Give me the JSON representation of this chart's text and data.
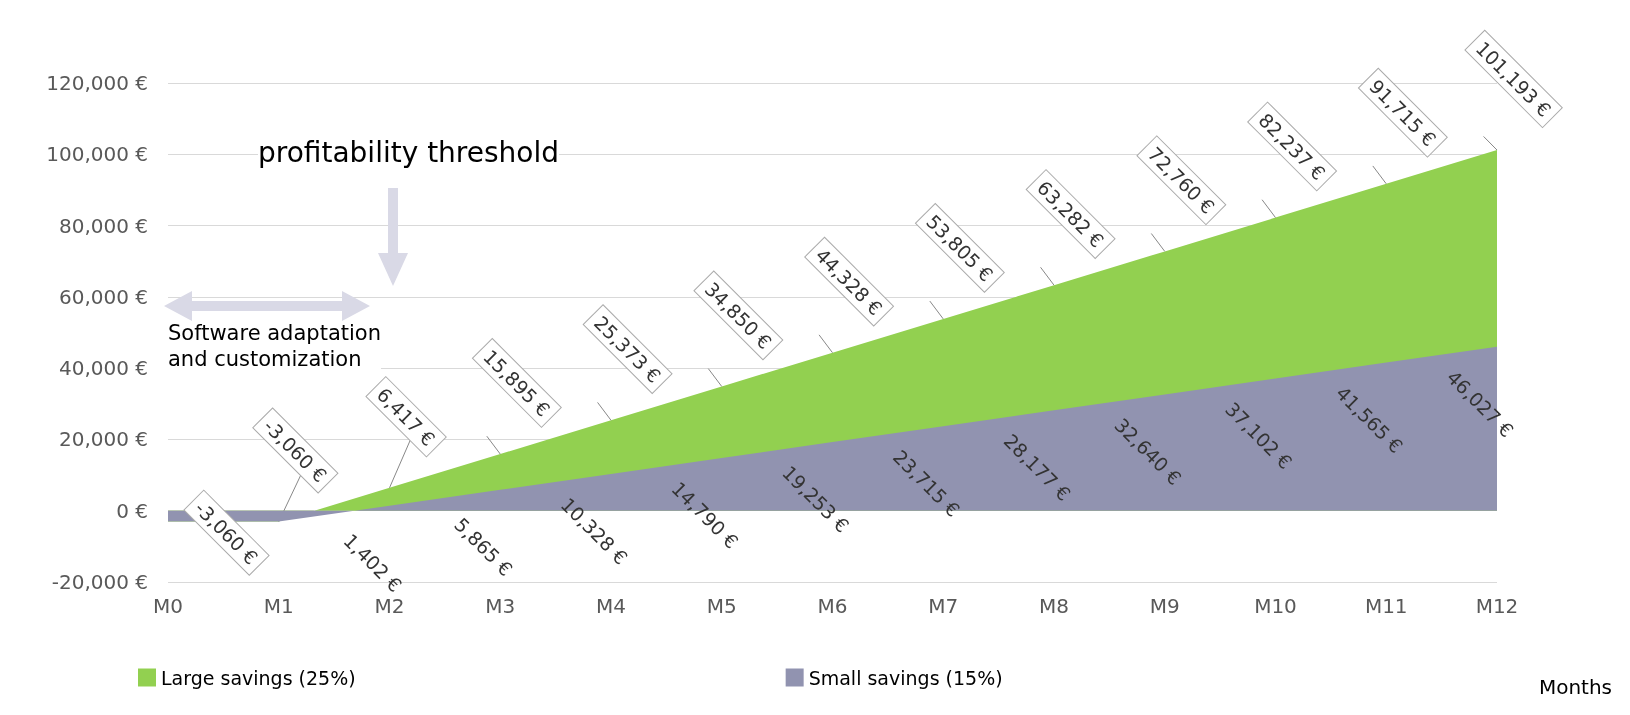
{
  "chart_data": {
    "type": "area",
    "xlabel": "Months",
    "categories": [
      "M0",
      "M1",
      "M2",
      "M3",
      "M4",
      "M5",
      "M6",
      "M7",
      "M8",
      "M9",
      "M10",
      "M11",
      "M12"
    ],
    "series": [
      {
        "name": "Large savings (25%)",
        "color": "#92d050",
        "values": [
          -3060,
          -3060,
          6417,
          15895,
          25373,
          34850,
          44328,
          53805,
          63282,
          72760,
          82237,
          91715,
          101193
        ],
        "value_labels": [
          null,
          "-3,060 €",
          "6,417 €",
          "15,895 €",
          "25,373 €",
          "34,850 €",
          "44,328 €",
          "53,805 €",
          "63,282 €",
          "72,760 €",
          "82,237 €",
          "91,715 €",
          "101,193 €"
        ]
      },
      {
        "name": "Small savings (15%)",
        "color": "#9193b0",
        "values": [
          -3060,
          -3060,
          1402,
          5865,
          10328,
          14790,
          19253,
          23715,
          28177,
          32640,
          37102,
          41565,
          46027
        ],
        "value_labels": [
          "-3,060 €",
          null,
          "1,402 €",
          "5,865 €",
          "10,328 €",
          "14,790 €",
          "19,253 €",
          "23,715 €",
          "28,177 €",
          "32,640 €",
          "37,102 €",
          "41,565 €",
          "46,027 €"
        ]
      }
    ],
    "ylim": [
      -20000,
      120000
    ],
    "yticks": [
      {
        "value": -20000,
        "label": "-20,000 €"
      },
      {
        "value": 0,
        "label": "0 €"
      },
      {
        "value": 20000,
        "label": "20,000 €"
      },
      {
        "value": 40000,
        "label": "40,000 €"
      },
      {
        "value": 60000,
        "label": "60,000 €"
      },
      {
        "value": 80000,
        "label": "80,000 €"
      },
      {
        "value": 100000,
        "label": "100,000 €"
      },
      {
        "value": 120000,
        "label": "120,000 €"
      }
    ],
    "grid": "y",
    "legend": "bottom left",
    "annotations": [
      "profitability threshold",
      "Software adaptation\nand customization"
    ]
  }
}
